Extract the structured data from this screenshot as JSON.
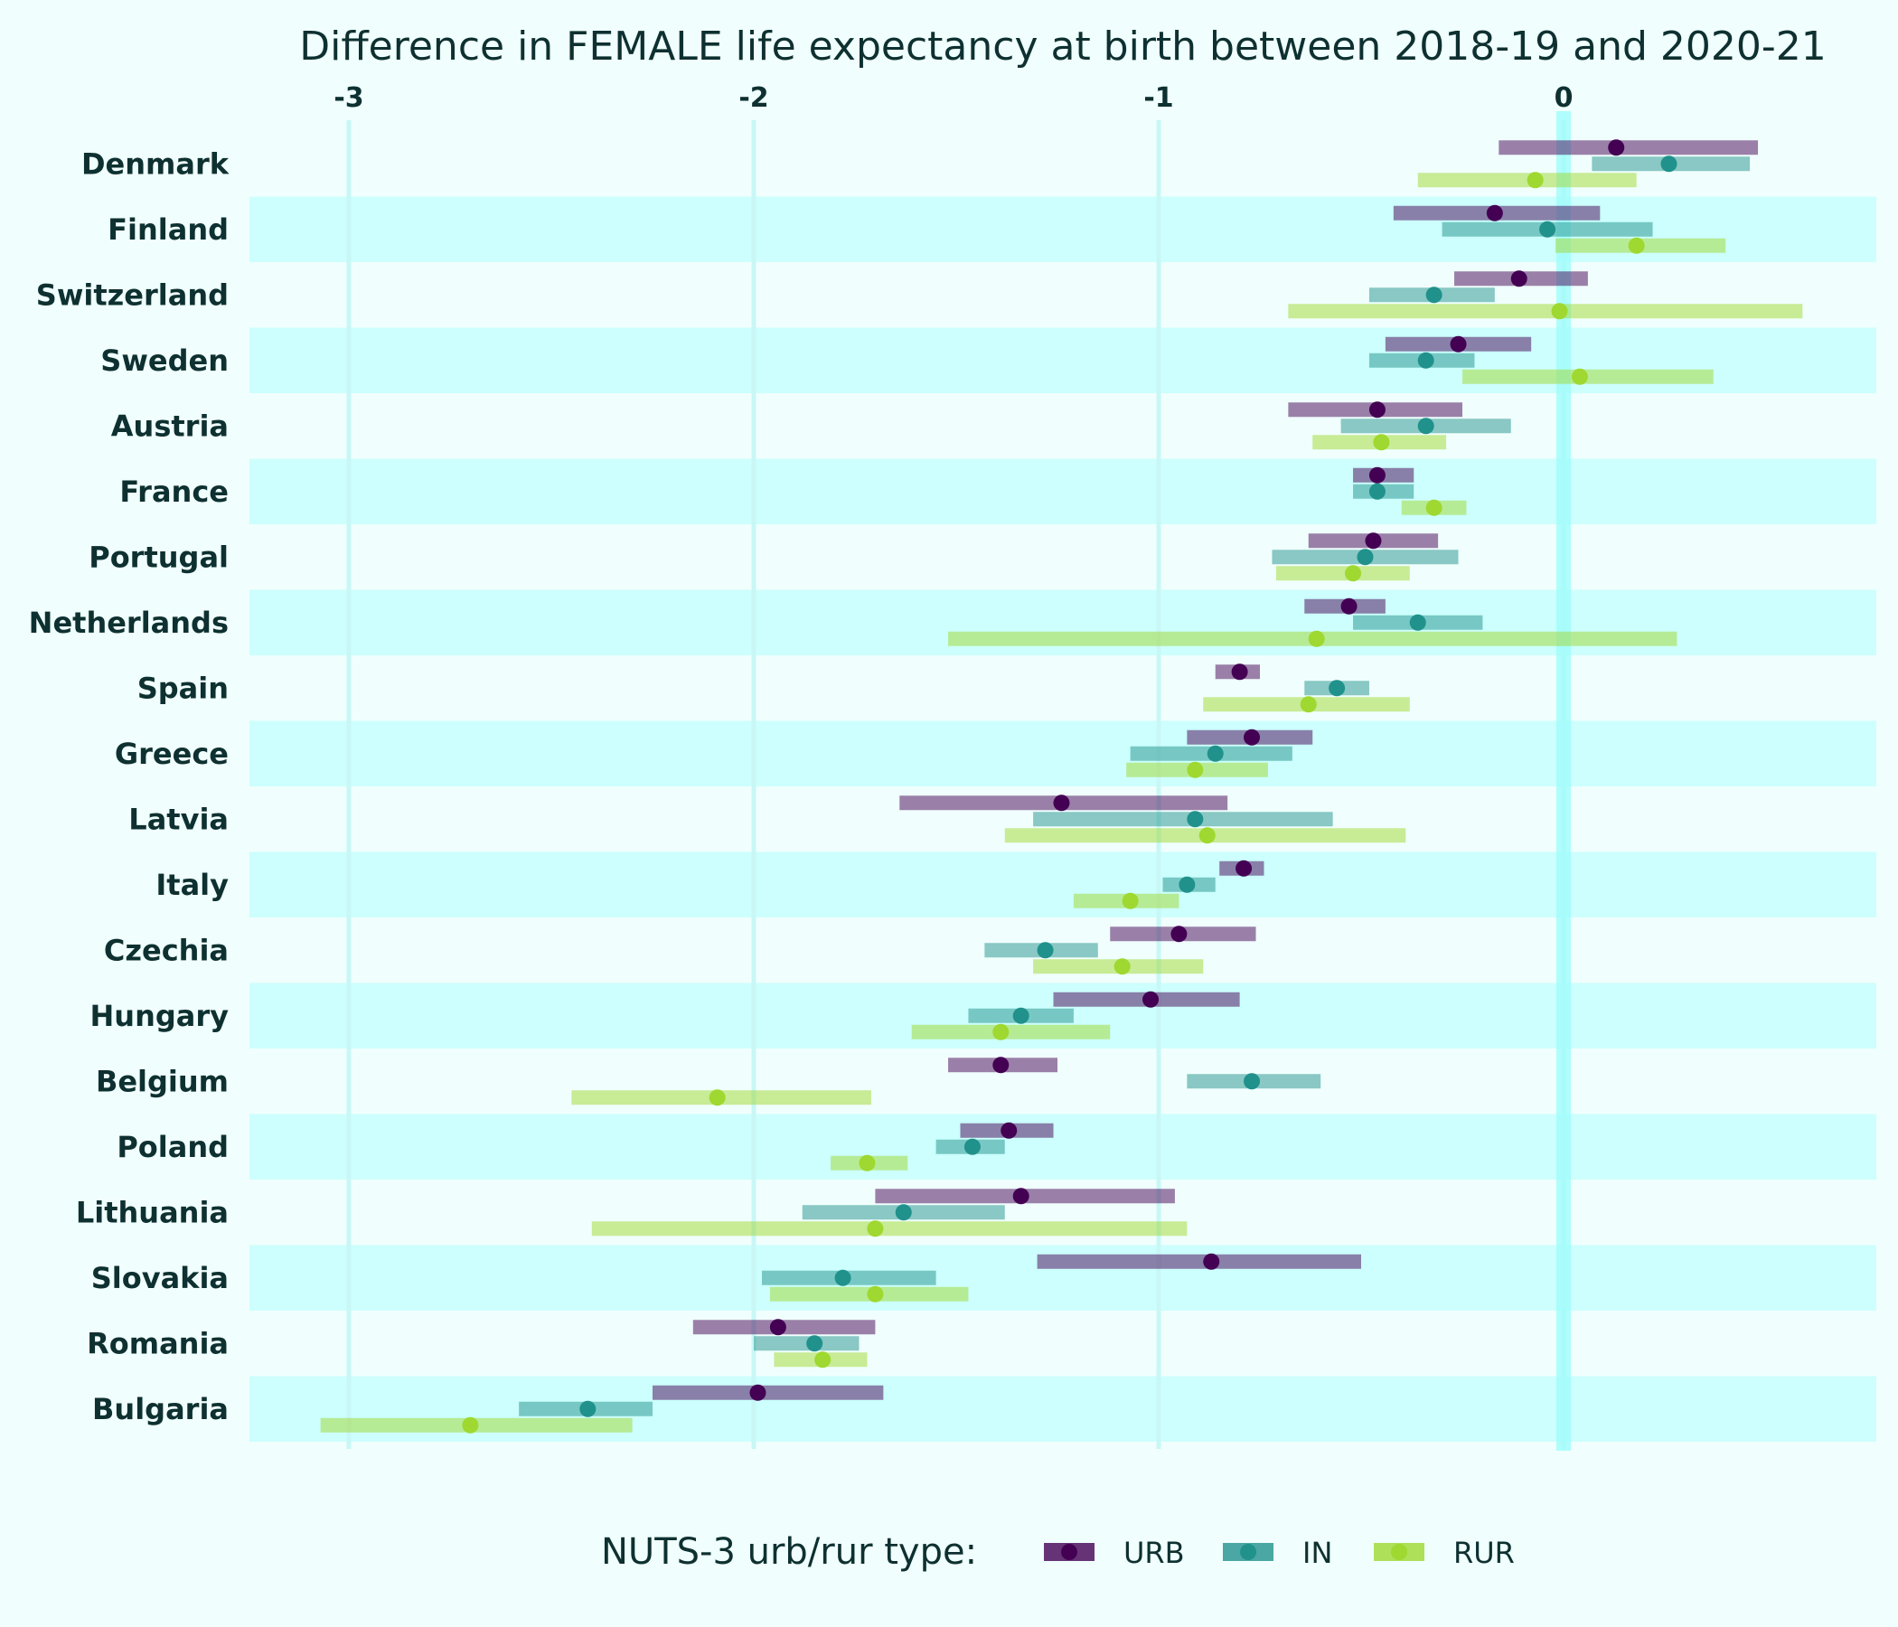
{
  "chart_data": {
    "type": "range-dot",
    "title": "Difference in FEMALE life expectancy at birth between 2018-19 and 2020-21",
    "x_ticks": [
      "-3",
      "-2",
      "-1",
      "0"
    ],
    "xlim": [
      -3.25,
      0.78
    ],
    "legend_title": "NUTS-3 urb/rur type:",
    "legend_position": "bottom",
    "series": [
      {
        "name": "URB",
        "color": "#440154"
      },
      {
        "name": "IN",
        "color": "#21918c"
      },
      {
        "name": "RUR",
        "color": "#9fd830"
      }
    ],
    "categories": [
      "Denmark",
      "Finland",
      "Switzerland",
      "Sweden",
      "Austria",
      "France",
      "Portugal",
      "Netherlands",
      "Spain",
      "Greece",
      "Latvia",
      "Italy",
      "Czechia",
      "Hungary",
      "Belgium",
      "Poland",
      "Lithuania",
      "Slovakia",
      "Romania",
      "Bulgaria"
    ],
    "rows": [
      {
        "country": "Denmark",
        "URB": {
          "min": -0.16,
          "max": 0.48,
          "median": 0.13
        },
        "IN": {
          "min": 0.07,
          "max": 0.46,
          "median": 0.26
        },
        "RUR": {
          "min": -0.36,
          "max": 0.18,
          "median": -0.07
        }
      },
      {
        "country": "Finland",
        "URB": {
          "min": -0.42,
          "max": 0.09,
          "median": -0.17
        },
        "IN": {
          "min": -0.3,
          "max": 0.22,
          "median": -0.04
        },
        "RUR": {
          "min": -0.02,
          "max": 0.4,
          "median": 0.18
        }
      },
      {
        "country": "Switzerland",
        "URB": {
          "min": -0.27,
          "max": 0.06,
          "median": -0.11
        },
        "IN": {
          "min": -0.48,
          "max": -0.17,
          "median": -0.32
        },
        "RUR": {
          "min": -0.68,
          "max": 0.59,
          "median": -0.01
        }
      },
      {
        "country": "Sweden",
        "URB": {
          "min": -0.44,
          "max": -0.08,
          "median": -0.26
        },
        "IN": {
          "min": -0.48,
          "max": -0.22,
          "median": -0.34
        },
        "RUR": {
          "min": -0.25,
          "max": 0.37,
          "median": 0.04
        }
      },
      {
        "country": "Austria",
        "URB": {
          "min": -0.68,
          "max": -0.25,
          "median": -0.46
        },
        "IN": {
          "min": -0.55,
          "max": -0.13,
          "median": -0.34
        },
        "RUR": {
          "min": -0.62,
          "max": -0.29,
          "median": -0.45
        }
      },
      {
        "country": "France",
        "URB": {
          "min": -0.52,
          "max": -0.37,
          "median": -0.46
        },
        "IN": {
          "min": -0.52,
          "max": -0.37,
          "median": -0.46
        },
        "RUR": {
          "min": -0.4,
          "max": -0.24,
          "median": -0.32
        }
      },
      {
        "country": "Portugal",
        "URB": {
          "min": -0.63,
          "max": -0.31,
          "median": -0.47
        },
        "IN": {
          "min": -0.72,
          "max": -0.26,
          "median": -0.49
        },
        "RUR": {
          "min": -0.71,
          "max": -0.38,
          "median": -0.52
        }
      },
      {
        "country": "Netherlands",
        "URB": {
          "min": -0.64,
          "max": -0.44,
          "median": -0.53
        },
        "IN": {
          "min": -0.52,
          "max": -0.2,
          "median": -0.36
        },
        "RUR": {
          "min": -1.52,
          "max": 0.28,
          "median": -0.61
        }
      },
      {
        "country": "Spain",
        "URB": {
          "min": -0.86,
          "max": -0.75,
          "median": -0.8
        },
        "IN": {
          "min": -0.64,
          "max": -0.48,
          "median": -0.56
        },
        "RUR": {
          "min": -0.89,
          "max": -0.38,
          "median": -0.63
        }
      },
      {
        "country": "Greece",
        "URB": {
          "min": -0.93,
          "max": -0.62,
          "median": -0.77
        },
        "IN": {
          "min": -1.07,
          "max": -0.67,
          "median": -0.86
        },
        "RUR": {
          "min": -1.08,
          "max": -0.73,
          "median": -0.91
        }
      },
      {
        "country": "Latvia",
        "URB": {
          "min": -1.64,
          "max": -0.83,
          "median": -1.24
        },
        "IN": {
          "min": -1.31,
          "max": -0.57,
          "median": -0.91
        },
        "RUR": {
          "min": -1.38,
          "max": -0.39,
          "median": -0.88
        }
      },
      {
        "country": "Italy",
        "URB": {
          "min": -0.85,
          "max": -0.74,
          "median": -0.79
        },
        "IN": {
          "min": -0.99,
          "max": -0.86,
          "median": -0.93
        },
        "RUR": {
          "min": -1.21,
          "max": -0.95,
          "median": -1.07
        }
      },
      {
        "country": "Czechia",
        "URB": {
          "min": -1.12,
          "max": -0.76,
          "median": -0.95
        },
        "IN": {
          "min": -1.43,
          "max": -1.15,
          "median": -1.28
        },
        "RUR": {
          "min": -1.31,
          "max": -0.89,
          "median": -1.09
        }
      },
      {
        "country": "Hungary",
        "URB": {
          "min": -1.26,
          "max": -0.8,
          "median": -1.02
        },
        "IN": {
          "min": -1.47,
          "max": -1.21,
          "median": -1.34
        },
        "RUR": {
          "min": -1.61,
          "max": -1.12,
          "median": -1.39
        }
      },
      {
        "country": "Belgium",
        "URB": {
          "min": -1.52,
          "max": -1.25,
          "median": -1.39
        },
        "IN": {
          "min": -0.93,
          "max": -0.6,
          "median": -0.77
        },
        "RUR": {
          "min": -2.45,
          "max": -1.71,
          "median": -2.09
        }
      },
      {
        "country": "Poland",
        "URB": {
          "min": -1.49,
          "max": -1.26,
          "median": -1.37
        },
        "IN": {
          "min": -1.55,
          "max": -1.38,
          "median": -1.46
        },
        "RUR": {
          "min": -1.81,
          "max": -1.62,
          "median": -1.72
        }
      },
      {
        "country": "Lithuania",
        "URB": {
          "min": -1.7,
          "max": -0.96,
          "median": -1.34
        },
        "IN": {
          "min": -1.88,
          "max": -1.38,
          "median": -1.63
        },
        "RUR": {
          "min": -2.4,
          "max": -0.93,
          "median": -1.7
        }
      },
      {
        "country": "Slovakia",
        "URB": {
          "min": -1.3,
          "max": -0.5,
          "median": -0.87
        },
        "IN": {
          "min": -1.98,
          "max": -1.55,
          "median": -1.78
        },
        "RUR": {
          "min": -1.96,
          "max": -1.47,
          "median": -1.7
        }
      },
      {
        "country": "Romania",
        "URB": {
          "min": -2.15,
          "max": -1.7,
          "median": -1.94
        },
        "IN": {
          "min": -2.0,
          "max": -1.74,
          "median": -1.85
        },
        "RUR": {
          "min": -1.95,
          "max": -1.72,
          "median": -1.83
        }
      },
      {
        "country": "Bulgaria",
        "URB": {
          "min": -2.25,
          "max": -1.68,
          "median": -1.99
        },
        "IN": {
          "min": -2.58,
          "max": -2.25,
          "median": -2.41
        },
        "RUR": {
          "min": -3.07,
          "max": -2.3,
          "median": -2.7
        }
      }
    ]
  }
}
